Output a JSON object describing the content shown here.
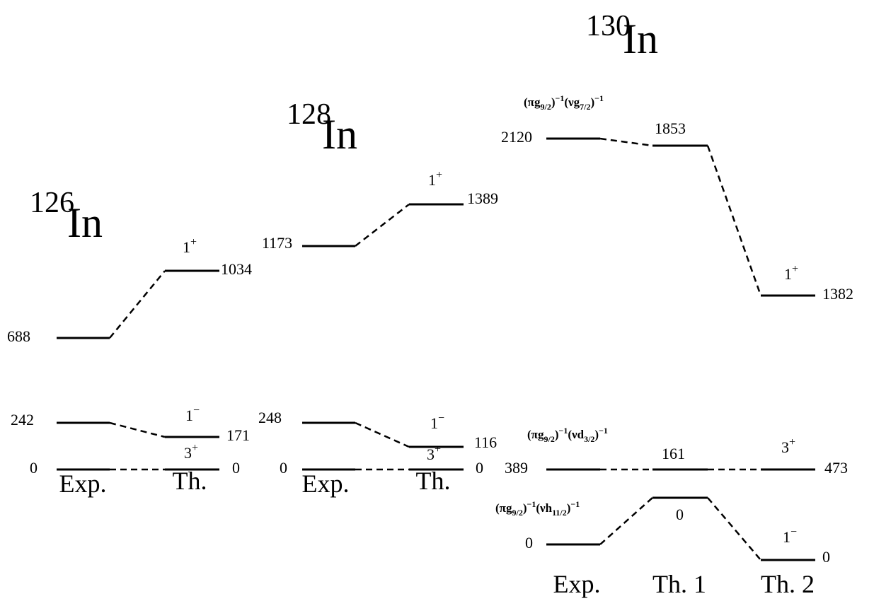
{
  "nuclei": [
    {
      "mass": "126",
      "element": "In",
      "columns": [
        {
          "label": "Exp.",
          "levels": [
            {
              "energy": 688
            },
            {
              "energy": 242
            },
            {
              "energy": 0
            }
          ]
        },
        {
          "label": "Th.",
          "levels": [
            {
              "energy": 1034,
              "spin": [
                "1",
                "+"
              ]
            },
            {
              "energy": 171,
              "spin": [
                "1",
                "−"
              ]
            },
            {
              "energy": 0,
              "spin": [
                "3",
                "+"
              ]
            }
          ]
        }
      ]
    },
    {
      "mass": "128",
      "element": "In",
      "columns": [
        {
          "label": "Exp.",
          "levels": [
            {
              "energy": 1173
            },
            {
              "energy": 248
            },
            {
              "energy": 0
            }
          ]
        },
        {
          "label": "Th.",
          "levels": [
            {
              "energy": 1389,
              "spin": [
                "1",
                "+"
              ]
            },
            {
              "energy": 116,
              "spin": [
                "1",
                "−"
              ]
            },
            {
              "energy": 0,
              "spin": [
                "3",
                "+"
              ]
            }
          ]
        }
      ]
    },
    {
      "mass": "130",
      "element": "In",
      "columns": [
        {
          "label": "Exp.",
          "levels": [
            {
              "energy": 2120,
              "config": [
                "(π",
                "g",
                "9/2",
                ")",
                "−1",
                "(ν",
                "g",
                "7/2",
                ")",
                "−1"
              ]
            },
            {
              "energy": 389,
              "config": [
                "(π",
                "g",
                "9/2",
                ")",
                "−1",
                "(ν",
                "d",
                "3/2",
                ")",
                "−1"
              ]
            },
            {
              "energy": 0,
              "config": [
                "(π",
                "g",
                "9/2",
                ")",
                "−1",
                "(ν",
                "h",
                "11/2",
                ")",
                "−1"
              ]
            }
          ]
        },
        {
          "label": "Th. 1",
          "levels": [
            {
              "energy": 1853
            },
            {
              "energy": 161
            },
            {
              "energy": 0
            }
          ]
        },
        {
          "label": "Th. 2",
          "levels": [
            {
              "energy": 1382,
              "spin": [
                "1",
                "+"
              ]
            },
            {
              "energy": 473,
              "spin": [
                "3",
                "+"
              ]
            },
            {
              "energy": 0,
              "spin": [
                "1",
                "−"
              ]
            }
          ]
        }
      ]
    }
  ]
}
